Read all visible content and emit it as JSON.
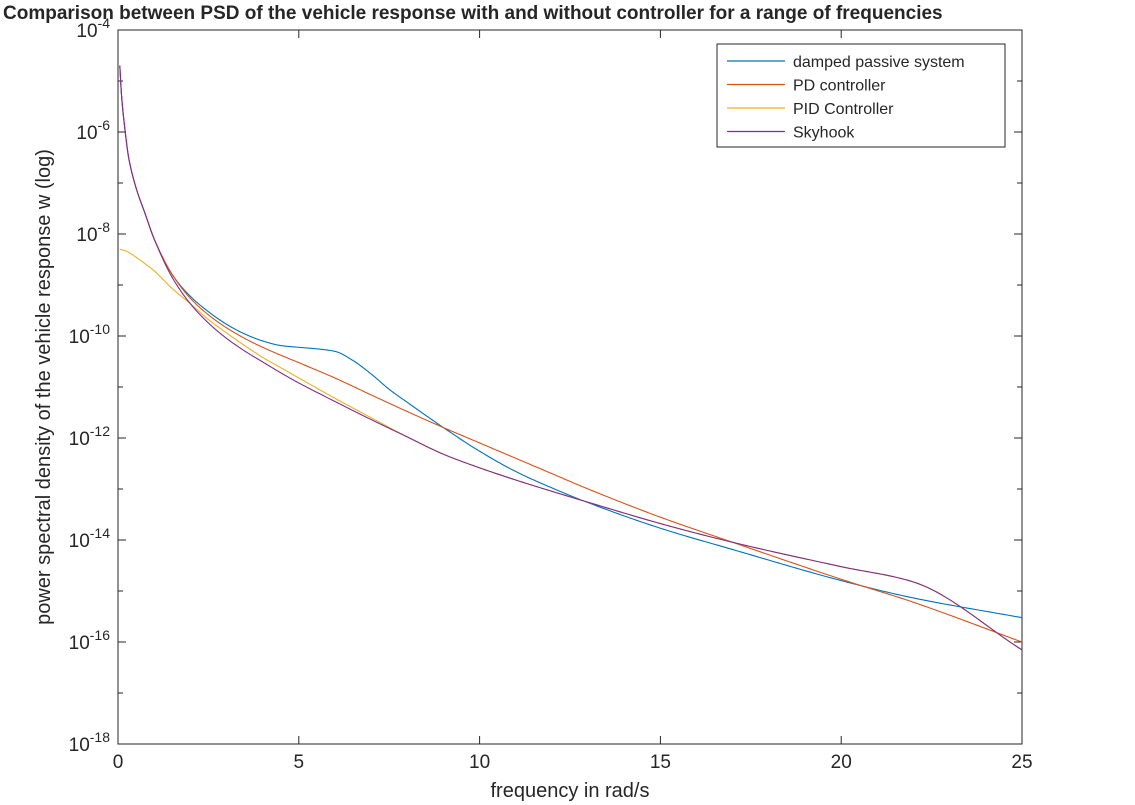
{
  "chart_data": {
    "type": "line",
    "title": "Comparison between PSD of the vehicle response with and without controller for a range of frequencies",
    "xlabel": "frequency in rad/s",
    "ylabel": "power spectral density of the vehicle response w (log)",
    "xlim": [
      0,
      25
    ],
    "ylim": [
      1e-18,
      0.0001
    ],
    "yscale": "log",
    "grid": false,
    "legend_position": "top-right",
    "x_ticks": [
      "0",
      "5",
      "10",
      "15",
      "20",
      "25"
    ],
    "y_ticks": [
      {
        "base": "10",
        "exp": "-4"
      },
      {
        "base": "10",
        "exp": "-6"
      },
      {
        "base": "10",
        "exp": "-8"
      },
      {
        "base": "10",
        "exp": "-10"
      },
      {
        "base": "10",
        "exp": "-12"
      },
      {
        "base": "10",
        "exp": "-14"
      },
      {
        "base": "10",
        "exp": "-16"
      },
      {
        "base": "10",
        "exp": "-18"
      }
    ],
    "series": [
      {
        "name": "damped passive system",
        "color": "#0072BD",
        "x": [
          0.05,
          0.1,
          0.2,
          0.3,
          0.5,
          0.75,
          1.0,
          1.5,
          2.0,
          2.5,
          3.0,
          3.5,
          4.0,
          4.5,
          5.0,
          5.5,
          6.0,
          6.5,
          7.0,
          7.5,
          8.0,
          9.0,
          10.0,
          11.0,
          12.0,
          13.0,
          15.0,
          17.0,
          20.0,
          22.0,
          25.0
        ],
        "y": [
          2e-05,
          5e-06,
          1e-06,
          3e-07,
          8e-08,
          2.5e-08,
          8e-09,
          1.6e-09,
          6e-10,
          3e-10,
          1.7e-10,
          1.1e-10,
          8e-11,
          6.5e-11,
          6e-11,
          5.6e-11,
          5e-11,
          3.3e-11,
          1.8e-11,
          9e-12,
          5e-12,
          1.6e-12,
          5.5e-13,
          2.2e-13,
          1.05e-13,
          5.4e-14,
          1.7e-14,
          6.5e-15,
          1.6e-15,
          7.3e-16,
          3e-16
        ]
      },
      {
        "name": "PD controller",
        "color": "#D95319",
        "x": [
          0.05,
          0.1,
          0.2,
          0.3,
          0.5,
          0.75,
          1.0,
          1.5,
          2.0,
          2.5,
          3.0,
          3.5,
          4.0,
          4.5,
          5.0,
          6.0,
          7.0,
          8.0,
          9.0,
          10.0,
          11.0,
          12.0,
          13.0,
          15.0,
          17.0,
          20.0,
          22.0,
          25.0
        ],
        "y": [
          2e-05,
          5e-06,
          1e-06,
          3e-07,
          8e-08,
          2.5e-08,
          8e-09,
          1.6e-09,
          5.5e-10,
          2.6e-10,
          1.45e-10,
          9e-11,
          6e-11,
          4.2e-11,
          3e-11,
          1.5e-11,
          7e-12,
          3.3e-12,
          1.6e-12,
          8e-13,
          4e-13,
          2e-13,
          1e-13,
          2.8e-14,
          9e-15,
          1.7e-15,
          6e-16,
          1e-16
        ]
      },
      {
        "name": "PID Controller",
        "color": "#EDB120",
        "x": [
          0.05,
          0.2,
          0.5,
          0.75,
          1.0,
          1.5,
          2.0,
          2.5,
          3.0,
          3.5,
          4.0,
          4.5,
          5.0,
          5.5,
          6.0,
          7.0,
          8.0,
          9.0,
          10.0,
          11.0,
          12.0,
          13.0,
          15.0,
          17.0,
          20.0,
          22.0,
          25.0
        ],
        "y": [
          5e-09,
          4.7e-09,
          3.5e-09,
          2.6e-09,
          1.9e-09,
          8.5e-10,
          4.3e-10,
          2.1e-10,
          1.15e-10,
          6.5e-11,
          3.8e-11,
          2.4e-11,
          1.5e-11,
          9.5e-12,
          6e-12,
          2.5e-12,
          1.05e-12,
          4.8e-13,
          2.6e-13,
          1.5e-13,
          9e-14,
          5.5e-14,
          2.1e-14,
          9e-15,
          3e-15,
          1.5e-15,
          7e-17
        ]
      },
      {
        "name": "Skyhook",
        "color": "#7E2F8E",
        "x": [
          0.05,
          0.1,
          0.2,
          0.3,
          0.5,
          0.75,
          1.0,
          1.5,
          2.0,
          2.5,
          3.0,
          3.5,
          4.0,
          4.5,
          5.0,
          6.0,
          7.0,
          8.0,
          9.0,
          10.0,
          11.0,
          12.0,
          13.0,
          15.0,
          17.0,
          20.0,
          22.0,
          25.0
        ],
        "y": [
          2e-05,
          5e-06,
          1e-06,
          3e-07,
          8e-08,
          2.5e-08,
          8e-09,
          1.4e-09,
          4.3e-10,
          1.8e-10,
          9e-11,
          5.1e-11,
          3.1e-11,
          1.9e-11,
          1.2e-11,
          5.2e-12,
          2.3e-12,
          1.05e-12,
          4.8e-13,
          2.6e-13,
          1.5e-13,
          9e-14,
          5.5e-14,
          2.1e-14,
          9e-15,
          3e-15,
          1.5e-15,
          7e-17
        ]
      }
    ]
  }
}
